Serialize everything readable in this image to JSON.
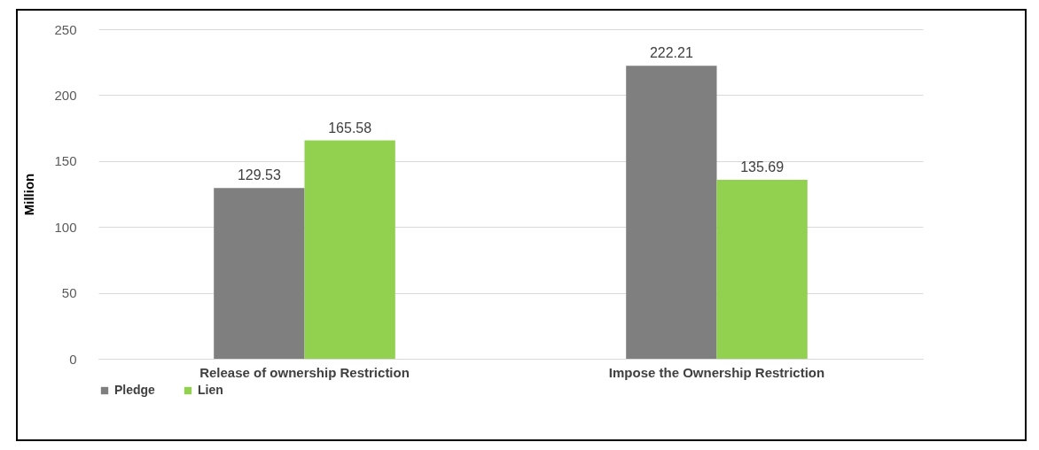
{
  "chart_data": {
    "type": "bar",
    "ylabel": "Million",
    "categories": [
      "Release of ownership Restriction",
      "Impose the Ownership Restriction"
    ],
    "series": [
      {
        "name": "Pledge",
        "color": "#7f7f7f",
        "values": [
          129.53,
          222.21
        ]
      },
      {
        "name": "Lien",
        "color": "#92d050",
        "values": [
          165.58,
          135.69
        ]
      }
    ],
    "ylim": [
      0,
      250
    ],
    "yticks": [
      0,
      50,
      100,
      150,
      200,
      250
    ],
    "grid": "y",
    "legend": "bottom",
    "data_labels": true
  }
}
